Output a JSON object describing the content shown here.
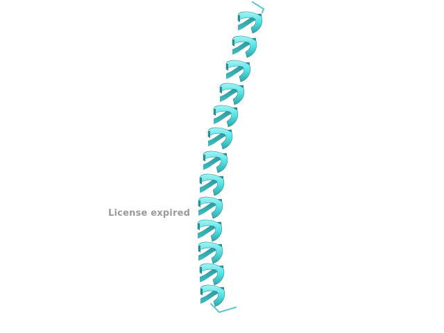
{
  "viewer": {
    "watermark": "License expired",
    "background_color": "#ffffff",
    "ribbon_color": "#4fe2e6",
    "ribbon_dark_color": "#2a8f93",
    "ribbon_light_color": "#a5f3f4",
    "coil_color": "#63c7cc",
    "structure_type": "alpha-helix cartoon"
  }
}
